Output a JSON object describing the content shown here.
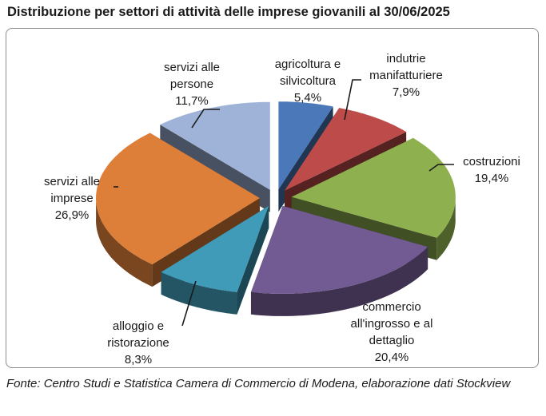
{
  "chart_data": {
    "type": "pie",
    "title": "Distribuzione per settori di attività delle imprese giovanili al 30/06/2025",
    "style": "3d-exploded",
    "legend": "none",
    "slices": [
      {
        "label_lines": [
          "agricoltura e",
          "silvicoltura"
        ],
        "value_text": "5,4%",
        "value": 5.4,
        "color": "#4a78b8"
      },
      {
        "label_lines": [
          "indutrie",
          "manifatturiere"
        ],
        "value_text": "7,9%",
        "value": 7.9,
        "color": "#bd4b4a"
      },
      {
        "label_lines": [
          "costruzioni"
        ],
        "value_text": "19,4%",
        "value": 19.4,
        "color": "#8fb04f"
      },
      {
        "label_lines": [
          "commercio",
          "all'ingrosso e al",
          "dettaglio"
        ],
        "value_text": "20,4%",
        "value": 20.4,
        "color": "#725b93"
      },
      {
        "label_lines": [
          "alloggio e",
          "ristorazione"
        ],
        "value_text": "8,3%",
        "value": 8.3,
        "color": "#3f9bb8"
      },
      {
        "label_lines": [
          "servizi alle",
          "imprese"
        ],
        "value_text": "26,9%",
        "value": 26.9,
        "color": "#dd7f39"
      },
      {
        "label_lines": [
          "servizi alle",
          "persone"
        ],
        "value_text": "11,7%",
        "value": 11.7,
        "color": "#9fb3d8"
      }
    ]
  },
  "source": "Fonte: Centro Studi e Statistica Camera di Commercio di Modena, elaborazione dati Stockview"
}
